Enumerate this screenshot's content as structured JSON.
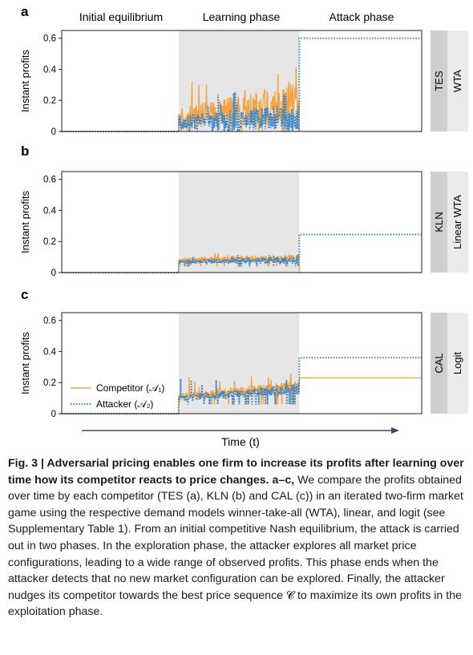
{
  "header": {
    "phases": [
      "Initial equilibrium",
      "Learning phase",
      "Attack phase"
    ]
  },
  "chart_data": [
    {
      "panel": "a",
      "type": "line",
      "model": "TES",
      "demand": "WTA",
      "ylabel": "Instant profits",
      "yticks": [
        "0",
        "0.2",
        "0.4",
        "0.6"
      ],
      "ylim": [
        0,
        0.65
      ],
      "xlim": [
        0,
        100
      ],
      "phase_bounds": [
        32.5,
        66
      ],
      "grid": false,
      "legend": "none",
      "series": [
        {
          "name": "Competitor (A1)",
          "role": "competitor",
          "color": "#f4a340",
          "style": "solid",
          "segments": [
            {
              "x": [
                0,
                32.5
              ],
              "y": [
                0,
                0
              ]
            },
            {
              "x": [
                32.5,
                66
              ],
              "y_baseline": 0.0,
              "y_mean_start": 0.09,
              "y_mean_end": 0.18,
              "y_spread": 0.22,
              "y_peak": 0.41
            },
            {
              "x": [
                66,
                100
              ],
              "y": [
                0,
                0
              ]
            }
          ]
        },
        {
          "name": "Attacker (A2)",
          "role": "attacker",
          "color": "#3a86c8",
          "style": "dotted",
          "segments": [
            {
              "x": [
                0,
                32.5
              ],
              "y": [
                0,
                0
              ]
            },
            {
              "x": [
                32.5,
                66
              ],
              "y_baseline": 0.0,
              "y_mean_start": 0.06,
              "y_mean_end": 0.09,
              "y_spread": 0.15,
              "y_peak": 0.27
            },
            {
              "x": [
                66,
                100
              ],
              "y": [
                0.6,
                0.6
              ]
            }
          ]
        }
      ]
    },
    {
      "panel": "b",
      "type": "line",
      "model": "KLN",
      "demand": "Linear WTA",
      "ylabel": "Instant profits",
      "yticks": [
        "0",
        "0.2",
        "0.4",
        "0.6"
      ],
      "ylim": [
        0,
        0.65
      ],
      "xlim": [
        0,
        100
      ],
      "phase_bounds": [
        32.5,
        66
      ],
      "grid": false,
      "legend": "none",
      "series": [
        {
          "name": "Competitor (A1)",
          "role": "competitor",
          "color": "#f4a340",
          "style": "solid",
          "segments": [
            {
              "x": [
                0,
                32.5
              ],
              "y": [
                0,
                0
              ]
            },
            {
              "x": [
                32.5,
                66
              ],
              "y_baseline": 0.04,
              "y_mean_start": 0.08,
              "y_mean_end": 0.09,
              "y_spread": 0.05,
              "y_peak": 0.13
            },
            {
              "x": [
                66,
                100
              ],
              "y": [
                0,
                0
              ]
            }
          ]
        },
        {
          "name": "Attacker (A2)",
          "role": "attacker",
          "color": "#3a86c8",
          "style": "dotted",
          "segments": [
            {
              "x": [
                0,
                32.5
              ],
              "y": [
                0,
                0
              ]
            },
            {
              "x": [
                32.5,
                66
              ],
              "y_baseline": 0.04,
              "y_mean_start": 0.07,
              "y_mean_end": 0.08,
              "y_spread": 0.04,
              "y_peak": 0.12
            },
            {
              "x": [
                66,
                100
              ],
              "y": [
                0.245,
                0.245
              ]
            }
          ]
        }
      ]
    },
    {
      "panel": "c",
      "type": "line",
      "model": "CAL",
      "demand": "Logit",
      "ylabel": "Instant profits",
      "yticks": [
        "0",
        "0.2",
        "0.4",
        "0.6"
      ],
      "ylim": [
        0,
        0.65
      ],
      "xlim": [
        0,
        100
      ],
      "xlabel": "Time (t)",
      "phase_bounds": [
        32.5,
        66
      ],
      "grid": false,
      "legend": "bottom-left",
      "legend_entries": [
        "Competitor (𝒜₁)",
        "Attacker (𝒜₂)"
      ],
      "series": [
        {
          "name": "Competitor (A1)",
          "role": "competitor",
          "color": "#f4a340",
          "style": "solid",
          "segments": [
            {
              "x": [
                0,
                32.5
              ],
              "y": [
                0,
                0
              ]
            },
            {
              "x": [
                32.5,
                66
              ],
              "y_baseline": 0.06,
              "y_mean_start": 0.11,
              "y_mean_end": 0.17,
              "y_spread": 0.07,
              "y_peak": 0.26
            },
            {
              "x": [
                66,
                100
              ],
              "y": [
                0.23,
                0.23
              ]
            }
          ]
        },
        {
          "name": "Attacker (A2)",
          "role": "attacker",
          "color": "#3a86c8",
          "style": "dotted",
          "segments": [
            {
              "x": [
                0,
                32.5
              ],
              "y": [
                0,
                0
              ]
            },
            {
              "x": [
                32.5,
                66
              ],
              "y_baseline": 0.06,
              "y_mean_start": 0.1,
              "y_mean_end": 0.16,
              "y_spread": 0.06,
              "y_peak": 0.24
            },
            {
              "x": [
                66,
                100
              ],
              "y": [
                0.36,
                0.36
              ]
            }
          ]
        }
      ]
    }
  ],
  "caption": {
    "lead_bold": "Fig. 3 | Adversarial pricing enables one firm to increase its profits after learning over time how its competitor reacts to price changes. a–c,",
    "body": " We compare the profits obtained over time by each competitor (TES (a), KLN (b) and CAL (c)) in an iterated two-firm market game using the respective demand models winner-take-all (WTA), linear, and logit (see Supplementary Table 1). From an initial competitive Nash equilibrium, the attack is carried out in two phases. In the exploration phase, the attacker explores all market price configurations, leading to a wide range of observed profits. This phase ends when the attacker detects that no new market configuration can be explored. Finally, the attacker nudges its competitor towards the best price sequence 𝓒 to maximize its own profits in the exploitation phase."
  }
}
